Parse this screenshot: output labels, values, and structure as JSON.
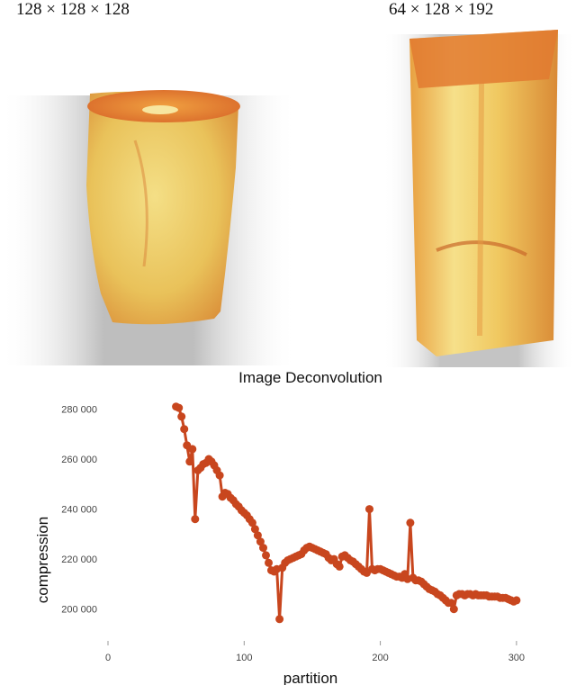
{
  "volumes": [
    {
      "label": "128 × 128 × 128"
    },
    {
      "label": "64 × 128 × 192"
    }
  ],
  "colors": {
    "series": "#c8461e",
    "bone_light": "#f2d77a",
    "bone_dark": "#d9742a",
    "shadow": "#9a9a9a"
  },
  "chart_data": {
    "type": "line",
    "title": "Image Deconvolution",
    "xlabel": "partition",
    "ylabel": "compression",
    "xlim": [
      0,
      310
    ],
    "ylim": [
      188000,
      287000
    ],
    "xticks": [
      0,
      100,
      200,
      300
    ],
    "yticks": [
      200000,
      220000,
      240000,
      260000,
      280000
    ],
    "xtick_labels": [
      "0",
      "100",
      "200",
      "300"
    ],
    "ytick_labels": [
      "200 000",
      "220 000",
      "240 000",
      "260 000",
      "280 000"
    ],
    "grid": false,
    "series": [
      {
        "x": [
          50,
          52,
          54,
          56,
          58,
          60,
          62,
          64,
          66,
          68,
          70,
          72,
          74,
          76,
          78,
          80,
          82,
          84,
          86,
          88,
          90,
          92,
          94,
          96,
          98,
          100,
          102,
          104,
          106,
          108,
          110,
          112,
          114,
          116,
          118,
          120,
          122,
          124,
          126,
          128,
          130,
          132,
          134,
          136,
          138,
          140,
          142,
          144,
          146,
          148,
          150,
          152,
          154,
          156,
          158,
          160,
          162,
          164,
          166,
          168,
          170,
          172,
          174,
          176,
          178,
          180,
          182,
          184,
          186,
          188,
          190,
          192,
          194,
          196,
          198,
          200,
          202,
          204,
          206,
          208,
          210,
          212,
          214,
          216,
          218,
          220,
          222,
          224,
          226,
          228,
          230,
          232,
          234,
          236,
          238,
          240,
          242,
          244,
          246,
          248,
          250,
          252,
          254,
          256,
          258,
          260,
          262,
          264,
          266,
          268,
          270,
          272,
          274,
          276,
          278,
          280,
          282,
          284,
          286,
          288,
          290,
          292,
          294,
          296,
          298,
          300
        ],
        "y": [
          281000,
          280500,
          277000,
          272000,
          265500,
          259000,
          264000,
          236000,
          255500,
          256500,
          258000,
          258500,
          260000,
          259000,
          257500,
          255500,
          253500,
          245000,
          246500,
          246000,
          244500,
          243500,
          242000,
          241000,
          239500,
          238500,
          237500,
          236000,
          234500,
          232000,
          229500,
          227000,
          224500,
          221500,
          218500,
          215500,
          215000,
          216000,
          196000,
          216500,
          218500,
          219500,
          220000,
          220500,
          221000,
          221500,
          222000,
          223500,
          224500,
          225000,
          224500,
          224000,
          223500,
          223000,
          222500,
          222000,
          220500,
          219500,
          220000,
          218000,
          217000,
          221000,
          221500,
          220500,
          219500,
          219000,
          218000,
          217000,
          216000,
          215000,
          214500,
          240000,
          216000,
          215500,
          216000,
          216000,
          215500,
          215000,
          214500,
          214000,
          213500,
          213000,
          213000,
          212500,
          214000,
          212000,
          234500,
          212500,
          211500,
          211500,
          211000,
          210000,
          209000,
          208000,
          207500,
          207000,
          206000,
          205500,
          204500,
          203500,
          202500,
          202500,
          200000,
          205500,
          206000,
          206000,
          205500,
          206000,
          206000,
          205500,
          206000,
          205500,
          205500,
          205500,
          205500,
          205000,
          205000,
          205000,
          205000,
          204500,
          204500,
          204500,
          204000,
          203500,
          203000,
          203500
        ]
      }
    ]
  }
}
